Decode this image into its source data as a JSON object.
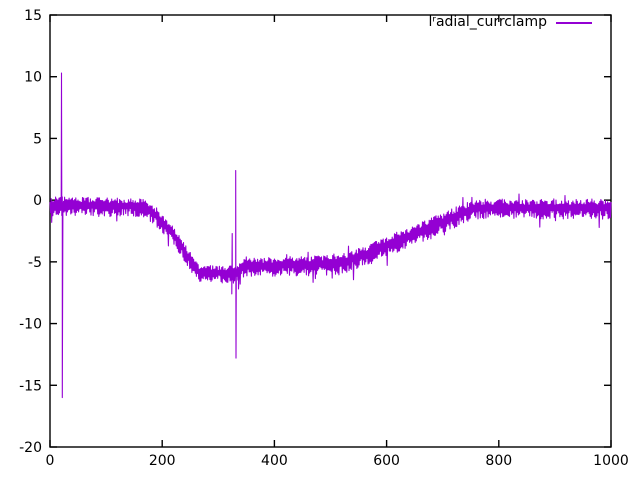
{
  "chart_data": {
    "type": "line",
    "title": "",
    "xlabel": "",
    "ylabel": "",
    "xlim": [
      0,
      1000
    ],
    "ylim": [
      -20,
      15
    ],
    "xticks": [
      0,
      200,
      400,
      600,
      800,
      1000
    ],
    "yticks": [
      -20,
      -15,
      -10,
      -5,
      0,
      5,
      10,
      15
    ],
    "grid": false,
    "legend_position": "top-right-inside",
    "axis_color": "#000000",
    "background_color": "#ffffff",
    "series": [
      {
        "name": "lʳadial_currclamp",
        "color": "#9400d3",
        "description": "noisy current-clamp trace: flat near -0.4, dips to about -5.9 between x=265-330, plateau near -5.2, rises back to -0.5 after x=740; tall spikes at x=21 and x=331",
        "trend_keypoints": [
          [
            0,
            -0.35
          ],
          [
            170,
            -0.45
          ],
          [
            215,
            -2.4
          ],
          [
            265,
            -5.85
          ],
          [
            330,
            -5.85
          ],
          [
            345,
            -5.35
          ],
          [
            430,
            -5.2
          ],
          [
            515,
            -5.1
          ],
          [
            560,
            -4.4
          ],
          [
            620,
            -3.2
          ],
          [
            680,
            -2.1
          ],
          [
            730,
            -1.1
          ],
          [
            760,
            -0.6
          ],
          [
            1000,
            -0.55
          ]
        ],
        "noise_amplitude_keypoints": [
          [
            0,
            0.8
          ],
          [
            170,
            0.75
          ],
          [
            265,
            0.7
          ],
          [
            350,
            0.75
          ],
          [
            520,
            0.85
          ],
          [
            740,
            0.85
          ],
          [
            1000,
            0.8
          ]
        ],
        "spikes": [
          [
            20.5,
            10.3
          ],
          [
            22,
            -16.0
          ],
          [
            324,
            -7.6
          ],
          [
            324.8,
            -2.7
          ],
          [
            331,
            2.4
          ],
          [
            331.6,
            -12.8
          ],
          [
            336,
            -7.2
          ],
          [
            339,
            -6.8
          ]
        ]
      }
    ]
  }
}
